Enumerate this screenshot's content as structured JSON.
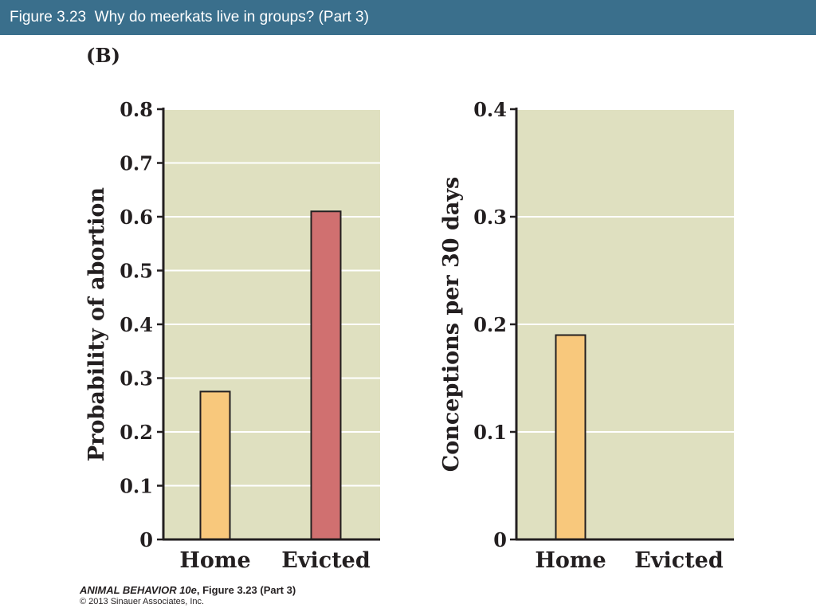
{
  "slide": {
    "title": "Figure 3.23  Why do meerkats live in groups? (Part 3)",
    "panel_label": "(B)",
    "footer_book": "ANIMAL BEHAVIOR 10e",
    "footer_figure": ", Figure 3.23 (Part 3)",
    "footer_copyright": "© 2013 Sinauer Associates, Inc."
  },
  "colors": {
    "title_bar": "#3a6f8c",
    "plot_background": "#dfe0c0",
    "home_bar": "#f8c87c",
    "evicted_bar": "#d07070",
    "axis": "#231f20"
  },
  "chart_data": [
    {
      "type": "bar",
      "categories": [
        "Home",
        "Evicted"
      ],
      "values": [
        0.275,
        0.61
      ],
      "ylabel": "Probability of abortion",
      "ylim": [
        0,
        0.8
      ],
      "yticks": [
        0,
        0.1,
        0.2,
        0.3,
        0.4,
        0.5,
        0.6,
        0.7,
        0.8
      ],
      "ytick_labels": [
        "0",
        "0.1",
        "0.2",
        "0.3",
        "0.4",
        "0.5",
        "0.6",
        "0.7",
        "0.8"
      ],
      "grid": true
    },
    {
      "type": "bar",
      "categories": [
        "Home",
        "Evicted"
      ],
      "values": [
        0.19,
        0
      ],
      "ylabel": "Conceptions per 30 days",
      "ylim": [
        0,
        0.4
      ],
      "yticks": [
        0,
        0.1,
        0.2,
        0.3,
        0.4
      ],
      "ytick_labels": [
        "0",
        "0.1",
        "0.2",
        "0.3",
        "0.4"
      ],
      "grid": true
    }
  ]
}
